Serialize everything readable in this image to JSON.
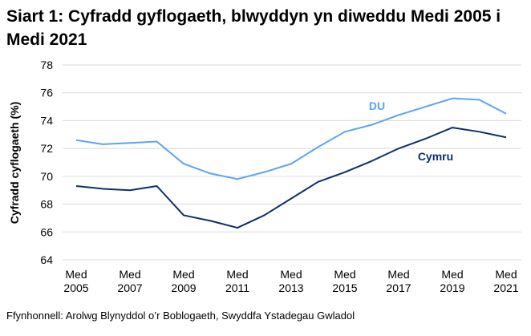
{
  "chart_data": {
    "type": "line",
    "title": "Siart 1: Cyfradd gyflogaeth, blwyddyn yn diweddu Medi 2005 i Medi 2021",
    "xlabel": "",
    "ylabel": "Cyfradd cyflogaeth (%)",
    "ylim": [
      64,
      78
    ],
    "yticks": [
      64,
      66,
      68,
      70,
      72,
      74,
      76,
      78
    ],
    "grid": true,
    "x": [
      2005,
      2006,
      2007,
      2008,
      2009,
      2010,
      2011,
      2012,
      2013,
      2014,
      2015,
      2016,
      2017,
      2018,
      2019,
      2020,
      2021
    ],
    "xtick_labels": [
      {
        "year": 2005,
        "line1": "Med",
        "line2": "2005"
      },
      {
        "year": 2007,
        "line1": "Med",
        "line2": "2007"
      },
      {
        "year": 2009,
        "line1": "Med",
        "line2": "2009"
      },
      {
        "year": 2011,
        "line1": "Med",
        "line2": "2011"
      },
      {
        "year": 2013,
        "line1": "Med",
        "line2": "2013"
      },
      {
        "year": 2015,
        "line1": "Med",
        "line2": "2015"
      },
      {
        "year": 2017,
        "line1": "Med",
        "line2": "2017"
      },
      {
        "year": 2019,
        "line1": "Med",
        "line2": "2019"
      },
      {
        "year": 2021,
        "line1": "Med",
        "line2": "2021"
      }
    ],
    "series": [
      {
        "name": "DU",
        "color": "#5ba3f5",
        "values": [
          72.6,
          72.3,
          72.4,
          72.5,
          70.9,
          70.2,
          69.8,
          70.3,
          70.9,
          72.1,
          73.2,
          73.7,
          74.4,
          75.0,
          75.6,
          75.5,
          74.5
        ]
      },
      {
        "name": "Cymru",
        "color": "#0b2f6b",
        "values": [
          69.3,
          69.1,
          69.0,
          69.3,
          67.2,
          66.8,
          66.3,
          67.2,
          68.4,
          69.6,
          70.3,
          71.1,
          72.0,
          72.7,
          73.5,
          73.2,
          72.8
        ]
      }
    ]
  },
  "source": "Ffynhonnell: Arolwg Blynyddol o’r Boblogaeth, Swyddfa Ystadegau Gwladol"
}
